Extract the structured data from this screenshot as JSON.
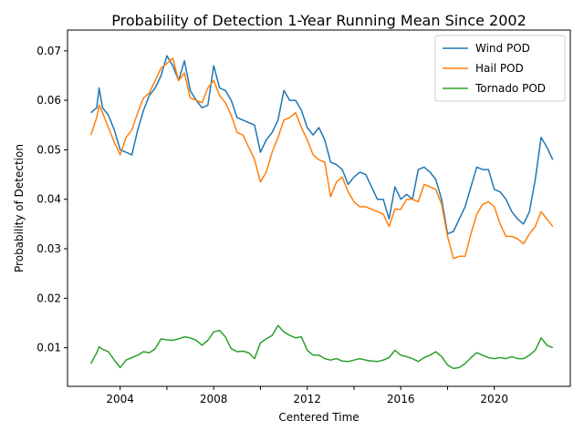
{
  "chart_data": {
    "type": "line",
    "title": "Probability of Detection 1-Year Running Mean Since 2002",
    "xlabel": "Centered Time",
    "ylabel": "Probability of Detection",
    "xlim": [
      2001.75,
      2023.25
    ],
    "ylim": [
      0.0022,
      0.0742
    ],
    "x_ticks": [
      2004,
      2006,
      2008,
      2010,
      2012,
      2014,
      2016,
      2018,
      2020
    ],
    "x_tick_labels": [
      "2004",
      "",
      "2008",
      "",
      "2012",
      "",
      "2016",
      "",
      "2020"
    ],
    "y_ticks": [
      0.01,
      0.02,
      0.03,
      0.04,
      0.05,
      0.06,
      0.07
    ],
    "y_tick_labels": [
      "0.01",
      "0.02",
      "0.03",
      "0.04",
      "0.05",
      "0.06",
      "0.07"
    ],
    "grid": false,
    "legend_position": "upper right",
    "series": [
      {
        "name": "Wind POD",
        "color": "#1f77b4",
        "x": [
          2002.75,
          2003.0,
          2003.1,
          2003.25,
          2003.5,
          2003.75,
          2004.0,
          2004.25,
          2004.5,
          2004.75,
          2005.0,
          2005.25,
          2005.5,
          2005.75,
          2006.0,
          2006.25,
          2006.5,
          2006.75,
          2007.0,
          2007.25,
          2007.5,
          2007.75,
          2008.0,
          2008.25,
          2008.5,
          2008.75,
          2009.0,
          2009.25,
          2009.5,
          2009.75,
          2010.0,
          2010.25,
          2010.5,
          2010.75,
          2011.0,
          2011.25,
          2011.5,
          2011.75,
          2012.0,
          2012.25,
          2012.5,
          2012.75,
          2013.0,
          2013.25,
          2013.5,
          2013.75,
          2014.0,
          2014.25,
          2014.5,
          2014.75,
          2015.0,
          2015.25,
          2015.5,
          2015.75,
          2016.0,
          2016.25,
          2016.5,
          2016.75,
          2017.0,
          2017.25,
          2017.5,
          2017.75,
          2018.0,
          2018.25,
          2018.5,
          2018.75,
          2019.0,
          2019.25,
          2019.5,
          2019.75,
          2020.0,
          2020.25,
          2020.5,
          2020.75,
          2021.0,
          2021.25,
          2021.5,
          2021.75,
          2022.0,
          2022.25,
          2022.5
        ],
        "y": [
          0.0575,
          0.0585,
          0.0625,
          0.0585,
          0.057,
          0.054,
          0.05,
          0.0495,
          0.049,
          0.054,
          0.058,
          0.061,
          0.0625,
          0.065,
          0.069,
          0.067,
          0.064,
          0.068,
          0.062,
          0.06,
          0.0585,
          0.059,
          0.067,
          0.0625,
          0.062,
          0.06,
          0.0565,
          0.056,
          0.0555,
          0.055,
          0.0495,
          0.052,
          0.0535,
          0.056,
          0.062,
          0.06,
          0.06,
          0.058,
          0.0545,
          0.053,
          0.0545,
          0.052,
          0.0475,
          0.047,
          0.046,
          0.043,
          0.0445,
          0.0455,
          0.045,
          0.0425,
          0.04,
          0.04,
          0.036,
          0.0425,
          0.04,
          0.041,
          0.04,
          0.046,
          0.0465,
          0.0455,
          0.044,
          0.04,
          0.033,
          0.0335,
          0.036,
          0.0385,
          0.0425,
          0.0465,
          0.046,
          0.046,
          0.042,
          0.0415,
          0.04,
          0.0375,
          0.036,
          0.035,
          0.0375,
          0.044,
          0.0525,
          0.0505,
          0.048
        ]
      },
      {
        "name": "Hail POD",
        "color": "#ff7f0e",
        "x": [
          2002.75,
          2003.0,
          2003.1,
          2003.25,
          2003.5,
          2003.75,
          2004.0,
          2004.25,
          2004.5,
          2004.75,
          2005.0,
          2005.25,
          2005.5,
          2005.75,
          2006.0,
          2006.25,
          2006.5,
          2006.75,
          2007.0,
          2007.25,
          2007.5,
          2007.75,
          2008.0,
          2008.25,
          2008.5,
          2008.75,
          2009.0,
          2009.25,
          2009.5,
          2009.75,
          2010.0,
          2010.25,
          2010.5,
          2010.75,
          2011.0,
          2011.25,
          2011.5,
          2011.75,
          2012.0,
          2012.25,
          2012.5,
          2012.75,
          2013.0,
          2013.25,
          2013.5,
          2013.75,
          2014.0,
          2014.25,
          2014.5,
          2014.75,
          2015.0,
          2015.25,
          2015.5,
          2015.75,
          2016.0,
          2016.25,
          2016.5,
          2016.75,
          2017.0,
          2017.25,
          2017.5,
          2017.75,
          2018.0,
          2018.25,
          2018.5,
          2018.75,
          2019.0,
          2019.25,
          2019.5,
          2019.75,
          2020.0,
          2020.25,
          2020.5,
          2020.75,
          2021.0,
          2021.25,
          2021.5,
          2021.75,
          2022.0,
          2022.25,
          2022.5
        ],
        "y": [
          0.053,
          0.0565,
          0.059,
          0.0575,
          0.0545,
          0.0515,
          0.049,
          0.0525,
          0.054,
          0.0575,
          0.0605,
          0.0615,
          0.064,
          0.0665,
          0.0675,
          0.0685,
          0.064,
          0.0655,
          0.0605,
          0.06,
          0.0595,
          0.0625,
          0.064,
          0.061,
          0.0595,
          0.057,
          0.0535,
          0.053,
          0.0505,
          0.048,
          0.0435,
          0.0455,
          0.0495,
          0.0525,
          0.056,
          0.0565,
          0.0575,
          0.0545,
          0.052,
          0.049,
          0.048,
          0.0475,
          0.0405,
          0.0435,
          0.0445,
          0.0415,
          0.0395,
          0.0385,
          0.0385,
          0.038,
          0.0375,
          0.037,
          0.0345,
          0.038,
          0.038,
          0.04,
          0.04,
          0.0395,
          0.043,
          0.0425,
          0.042,
          0.039,
          0.0325,
          0.028,
          0.0285,
          0.0285,
          0.033,
          0.037,
          0.039,
          0.0395,
          0.0385,
          0.035,
          0.0325,
          0.0325,
          0.032,
          0.031,
          0.033,
          0.0345,
          0.0375,
          0.036,
          0.0345
        ]
      },
      {
        "name": "Tornado POD",
        "color": "#2ca02c",
        "x": [
          2002.75,
          2003.0,
          2003.1,
          2003.25,
          2003.5,
          2003.75,
          2004.0,
          2004.25,
          2004.5,
          2004.75,
          2005.0,
          2005.25,
          2005.5,
          2005.75,
          2006.0,
          2006.25,
          2006.5,
          2006.75,
          2007.0,
          2007.25,
          2007.5,
          2007.75,
          2008.0,
          2008.25,
          2008.5,
          2008.75,
          2009.0,
          2009.25,
          2009.5,
          2009.75,
          2010.0,
          2010.25,
          2010.5,
          2010.75,
          2011.0,
          2011.25,
          2011.5,
          2011.75,
          2012.0,
          2012.25,
          2012.5,
          2012.75,
          2013.0,
          2013.25,
          2013.5,
          2013.75,
          2014.0,
          2014.25,
          2014.5,
          2014.75,
          2015.0,
          2015.25,
          2015.5,
          2015.75,
          2016.0,
          2016.25,
          2016.5,
          2016.75,
          2017.0,
          2017.25,
          2017.5,
          2017.75,
          2018.0,
          2018.25,
          2018.5,
          2018.75,
          2019.0,
          2019.25,
          2019.5,
          2019.75,
          2020.0,
          2020.25,
          2020.5,
          2020.75,
          2021.0,
          2021.25,
          2021.5,
          2021.75,
          2022.0,
          2022.25,
          2022.5
        ],
        "y": [
          0.0068,
          0.009,
          0.0102,
          0.0097,
          0.0092,
          0.0075,
          0.006,
          0.0075,
          0.008,
          0.0085,
          0.0092,
          0.009,
          0.0098,
          0.0118,
          0.0116,
          0.0115,
          0.0118,
          0.0122,
          0.012,
          0.0115,
          0.0105,
          0.0115,
          0.0132,
          0.0135,
          0.0122,
          0.0098,
          0.0092,
          0.0093,
          0.009,
          0.0078,
          0.011,
          0.0118,
          0.0125,
          0.0145,
          0.0132,
          0.0125,
          0.012,
          0.0122,
          0.0095,
          0.0085,
          0.0085,
          0.0078,
          0.0075,
          0.0078,
          0.0073,
          0.0072,
          0.0075,
          0.0078,
          0.0075,
          0.0073,
          0.0072,
          0.0075,
          0.008,
          0.0095,
          0.0085,
          0.0082,
          0.0078,
          0.0072,
          0.008,
          0.0085,
          0.0092,
          0.0082,
          0.0065,
          0.0058,
          0.006,
          0.0068,
          0.008,
          0.009,
          0.0085,
          0.008,
          0.0078,
          0.008,
          0.0078,
          0.0082,
          0.0078,
          0.0078,
          0.0085,
          0.0095,
          0.012,
          0.0105,
          0.01
        ]
      }
    ]
  }
}
